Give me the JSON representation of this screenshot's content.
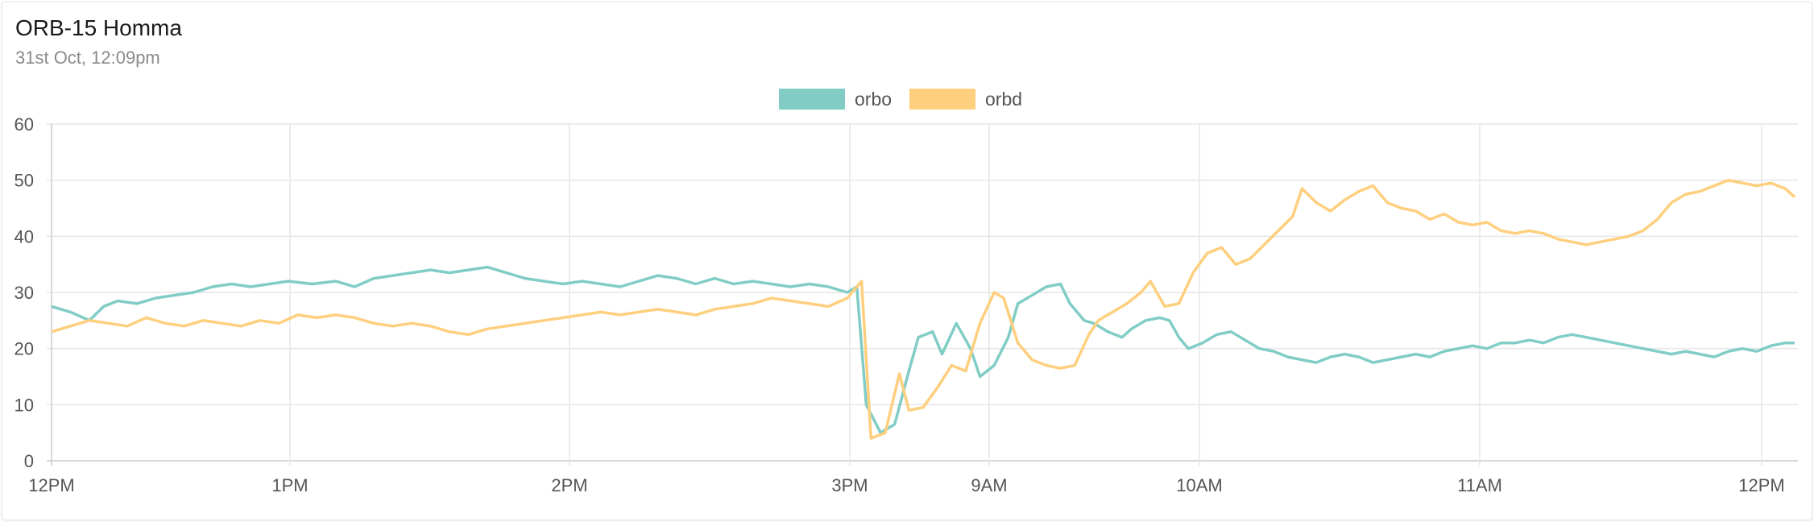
{
  "header": {
    "title": "ORB-15 Homma",
    "subtitle": "31st Oct, 12:09pm"
  },
  "colors": {
    "orbo": "#81cdc6",
    "orbd": "#fecf7e",
    "grid": "#e6e6e6",
    "axis": "#cccccc"
  },
  "chart_data": {
    "type": "line",
    "title": "",
    "xlabel": "",
    "ylabel": "",
    "ylim": [
      0,
      60
    ],
    "yticks": [
      "0",
      "10",
      "20",
      "30",
      "40",
      "50",
      "60"
    ],
    "xticks": [
      "12PM",
      "1PM",
      "2PM",
      "3PM",
      "9AM",
      "10AM",
      "11AM",
      "12PM"
    ],
    "legend": "top-center",
    "grid": true,
    "series": [
      {
        "name": "orbo",
        "values": [
          [
            0,
            27.5
          ],
          [
            0.4,
            26.5
          ],
          [
            0.8,
            25.0
          ],
          [
            1.1,
            27.5
          ],
          [
            1.4,
            28.5
          ],
          [
            1.8,
            28.0
          ],
          [
            2.2,
            29.0
          ],
          [
            2.6,
            29.5
          ],
          [
            3.0,
            30.0
          ],
          [
            3.4,
            31.0
          ],
          [
            3.8,
            31.5
          ],
          [
            4.2,
            31.0
          ],
          [
            4.6,
            31.5
          ],
          [
            5.0,
            32.0
          ],
          [
            5.5,
            31.5
          ],
          [
            6.0,
            32.0
          ],
          [
            6.4,
            31.0
          ],
          [
            6.8,
            32.5
          ],
          [
            7.2,
            33.0
          ],
          [
            7.6,
            33.5
          ],
          [
            8.0,
            34.0
          ],
          [
            8.4,
            33.5
          ],
          [
            8.8,
            34.0
          ],
          [
            9.2,
            34.5
          ],
          [
            9.6,
            33.5
          ],
          [
            10.0,
            32.5
          ],
          [
            10.4,
            32.0
          ],
          [
            10.8,
            31.5
          ],
          [
            11.2,
            32.0
          ],
          [
            11.6,
            31.5
          ],
          [
            12.0,
            31.0
          ],
          [
            12.4,
            32.0
          ],
          [
            12.8,
            33.0
          ],
          [
            13.2,
            32.5
          ],
          [
            13.6,
            31.5
          ],
          [
            14.0,
            32.5
          ],
          [
            14.4,
            31.5
          ],
          [
            14.8,
            32.0
          ],
          [
            15.2,
            31.5
          ],
          [
            15.6,
            31.0
          ],
          [
            16.0,
            31.5
          ],
          [
            16.4,
            31.0
          ],
          [
            16.8,
            30.0
          ],
          [
            17.0,
            31.0
          ],
          [
            17.2,
            10.0
          ],
          [
            17.5,
            5.0
          ],
          [
            17.8,
            6.5
          ],
          [
            18.1,
            16.0
          ],
          [
            18.3,
            22.0
          ],
          [
            18.6,
            23.0
          ],
          [
            18.8,
            19.0
          ],
          [
            19.1,
            24.5
          ],
          [
            19.4,
            20.0
          ],
          [
            19.6,
            15.0
          ],
          [
            19.9,
            17.0
          ],
          [
            20.2,
            22.0
          ],
          [
            20.4,
            28.0
          ],
          [
            20.7,
            29.5
          ],
          [
            21.0,
            31.0
          ],
          [
            21.3,
            31.5
          ],
          [
            21.5,
            28.0
          ],
          [
            21.8,
            25.0
          ],
          [
            22.0,
            24.5
          ],
          [
            22.3,
            23.0
          ],
          [
            22.6,
            22.0
          ],
          [
            22.8,
            23.5
          ],
          [
            23.1,
            25.0
          ],
          [
            23.4,
            25.5
          ],
          [
            23.6,
            25.0
          ],
          [
            23.8,
            22.0
          ],
          [
            24.0,
            20.0
          ],
          [
            24.3,
            21.0
          ],
          [
            24.6,
            22.5
          ],
          [
            24.9,
            23.0
          ],
          [
            25.2,
            21.5
          ],
          [
            25.5,
            20.0
          ],
          [
            25.8,
            19.5
          ],
          [
            26.1,
            18.5
          ],
          [
            26.4,
            18.0
          ],
          [
            26.7,
            17.5
          ],
          [
            27.0,
            18.5
          ],
          [
            27.3,
            19.0
          ],
          [
            27.6,
            18.5
          ],
          [
            27.9,
            17.5
          ],
          [
            28.2,
            18.0
          ],
          [
            28.5,
            18.5
          ],
          [
            28.8,
            19.0
          ],
          [
            29.1,
            18.5
          ],
          [
            29.4,
            19.5
          ],
          [
            29.7,
            20.0
          ],
          [
            30.0,
            20.5
          ],
          [
            30.3,
            20.0
          ],
          [
            30.6,
            21.0
          ],
          [
            30.9,
            21.0
          ],
          [
            31.2,
            21.5
          ],
          [
            31.5,
            21.0
          ],
          [
            31.8,
            22.0
          ],
          [
            32.1,
            22.5
          ],
          [
            32.4,
            22.0
          ],
          [
            32.7,
            21.5
          ],
          [
            33.0,
            21.0
          ],
          [
            33.3,
            20.5
          ],
          [
            33.6,
            20.0
          ],
          [
            33.9,
            19.5
          ],
          [
            34.2,
            19.0
          ],
          [
            34.5,
            19.5
          ],
          [
            34.8,
            19.0
          ],
          [
            35.1,
            18.5
          ],
          [
            35.4,
            19.5
          ],
          [
            35.7,
            20.0
          ],
          [
            36.0,
            19.5
          ],
          [
            36.3,
            20.5
          ],
          [
            36.6,
            21.0
          ],
          [
            36.8,
            21.0
          ]
        ]
      },
      {
        "name": "orbd",
        "values": [
          [
            0,
            23.0
          ],
          [
            0.4,
            24.0
          ],
          [
            0.8,
            25.0
          ],
          [
            1.2,
            24.5
          ],
          [
            1.6,
            24.0
          ],
          [
            2.0,
            25.5
          ],
          [
            2.4,
            24.5
          ],
          [
            2.8,
            24.0
          ],
          [
            3.2,
            25.0
          ],
          [
            3.6,
            24.5
          ],
          [
            4.0,
            24.0
          ],
          [
            4.4,
            25.0
          ],
          [
            4.8,
            24.5
          ],
          [
            5.2,
            26.0
          ],
          [
            5.6,
            25.5
          ],
          [
            6.0,
            26.0
          ],
          [
            6.4,
            25.5
          ],
          [
            6.8,
            24.5
          ],
          [
            7.2,
            24.0
          ],
          [
            7.6,
            24.5
          ],
          [
            8.0,
            24.0
          ],
          [
            8.4,
            23.0
          ],
          [
            8.8,
            22.5
          ],
          [
            9.2,
            23.5
          ],
          [
            9.6,
            24.0
          ],
          [
            10.0,
            24.5
          ],
          [
            10.4,
            25.0
          ],
          [
            10.8,
            25.5
          ],
          [
            11.2,
            26.0
          ],
          [
            11.6,
            26.5
          ],
          [
            12.0,
            26.0
          ],
          [
            12.4,
            26.5
          ],
          [
            12.8,
            27.0
          ],
          [
            13.2,
            26.5
          ],
          [
            13.6,
            26.0
          ],
          [
            14.0,
            27.0
          ],
          [
            14.4,
            27.5
          ],
          [
            14.8,
            28.0
          ],
          [
            15.2,
            29.0
          ],
          [
            15.6,
            28.5
          ],
          [
            16.0,
            28.0
          ],
          [
            16.4,
            27.5
          ],
          [
            16.8,
            29.0
          ],
          [
            17.1,
            32.0
          ],
          [
            17.3,
            4.0
          ],
          [
            17.6,
            5.0
          ],
          [
            17.9,
            15.5
          ],
          [
            18.1,
            9.0
          ],
          [
            18.4,
            9.5
          ],
          [
            18.7,
            13.0
          ],
          [
            19.0,
            17.0
          ],
          [
            19.3,
            16.0
          ],
          [
            19.6,
            24.5
          ],
          [
            19.9,
            30.0
          ],
          [
            20.1,
            29.0
          ],
          [
            20.4,
            21.0
          ],
          [
            20.7,
            18.0
          ],
          [
            21.0,
            17.0
          ],
          [
            21.3,
            16.5
          ],
          [
            21.6,
            17.0
          ],
          [
            21.9,
            22.5
          ],
          [
            22.1,
            25.0
          ],
          [
            22.4,
            26.5
          ],
          [
            22.7,
            28.0
          ],
          [
            23.0,
            30.0
          ],
          [
            23.2,
            32.0
          ],
          [
            23.5,
            27.5
          ],
          [
            23.8,
            28.0
          ],
          [
            24.1,
            33.5
          ],
          [
            24.4,
            37.0
          ],
          [
            24.7,
            38.0
          ],
          [
            25.0,
            35.0
          ],
          [
            25.3,
            36.0
          ],
          [
            25.6,
            38.5
          ],
          [
            25.9,
            41.0
          ],
          [
            26.2,
            43.5
          ],
          [
            26.4,
            48.5
          ],
          [
            26.7,
            46.0
          ],
          [
            27.0,
            44.5
          ],
          [
            27.3,
            46.5
          ],
          [
            27.6,
            48.0
          ],
          [
            27.9,
            49.0
          ],
          [
            28.2,
            46.0
          ],
          [
            28.5,
            45.0
          ],
          [
            28.8,
            44.5
          ],
          [
            29.1,
            43.0
          ],
          [
            29.4,
            44.0
          ],
          [
            29.7,
            42.5
          ],
          [
            30.0,
            42.0
          ],
          [
            30.3,
            42.5
          ],
          [
            30.6,
            41.0
          ],
          [
            30.9,
            40.5
          ],
          [
            31.2,
            41.0
          ],
          [
            31.5,
            40.5
          ],
          [
            31.8,
            39.5
          ],
          [
            32.1,
            39.0
          ],
          [
            32.4,
            38.5
          ],
          [
            32.7,
            39.0
          ],
          [
            33.0,
            39.5
          ],
          [
            33.3,
            40.0
          ],
          [
            33.6,
            41.0
          ],
          [
            33.9,
            43.0
          ],
          [
            34.2,
            46.0
          ],
          [
            34.5,
            47.5
          ],
          [
            34.8,
            48.0
          ],
          [
            35.1,
            49.0
          ],
          [
            35.4,
            50.0
          ],
          [
            35.7,
            49.5
          ],
          [
            36.0,
            49.0
          ],
          [
            36.3,
            49.5
          ],
          [
            36.6,
            48.5
          ],
          [
            36.8,
            47.0
          ]
        ]
      }
    ]
  }
}
